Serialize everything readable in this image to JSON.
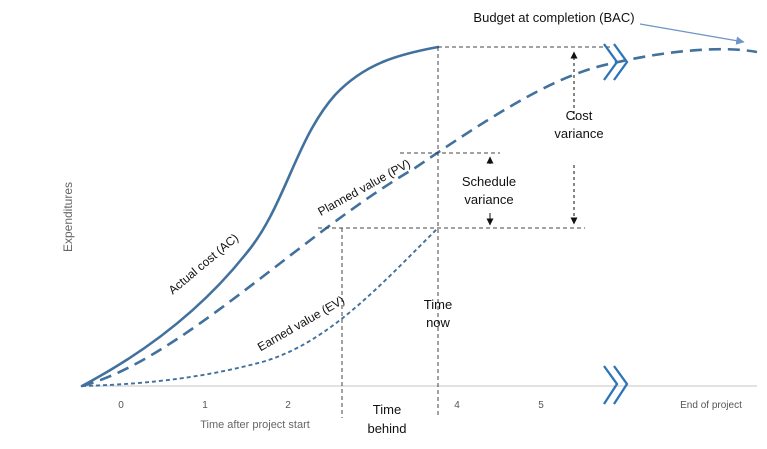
{
  "chart_data": {
    "type": "line",
    "x_axis": {
      "label": "Time after project start",
      "ticks": [
        "0",
        "1",
        "2",
        "4",
        "5",
        "End of project"
      ]
    },
    "y_axis": {
      "label": "Expenditures"
    },
    "series": [
      {
        "name": "Actual cost (AC)",
        "style": "solid",
        "color": "#41719c"
      },
      {
        "name": "Planned value (PV)",
        "style": "long-dash",
        "color": "#41719c"
      },
      {
        "name": "Earned value (EV)",
        "style": "short-dash",
        "color": "#41719c"
      }
    ],
    "annotations": {
      "bac": "Budget at completion (BAC)",
      "cost_variance_line1": "Cost",
      "cost_variance_line2": "variance",
      "schedule_variance_line1": "Schedule",
      "schedule_variance_line2": "variance",
      "time_now_line1": "Time",
      "time_now_line2": "now",
      "time_behind_line1": "Time",
      "time_behind_line2": "behind"
    },
    "colors": {
      "series": "#41719c",
      "break_mark": "#2e75b6",
      "guide": "#444444",
      "axis": "#d0d0d0"
    },
    "grid": false
  }
}
